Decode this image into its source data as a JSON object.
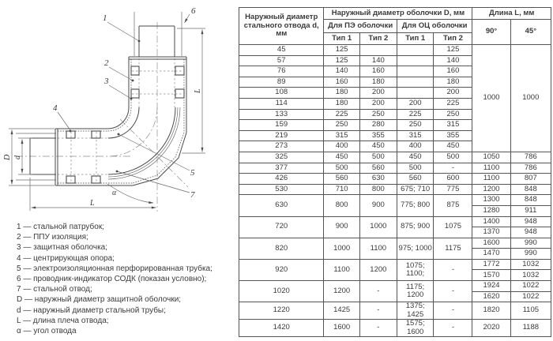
{
  "drawing": {
    "callouts": {
      "c1": "1",
      "c2": "2",
      "c3": "3",
      "c4": "4",
      "c5": "5",
      "c6": "6",
      "c7": "7"
    },
    "dims": {
      "shell_diameter": "D",
      "pipe_diameter": "d",
      "arm_length_bottom": "L",
      "arm_length_right": "L",
      "angle": "α"
    }
  },
  "legend": {
    "items": [
      "1 — стальной патрубок;",
      "2 — ППУ изоляция;",
      "3 — защитная оболочка;",
      "4 — центрирующая опора;",
      "5 — электроизоляционная перфорированная трубка;",
      "6 — проводник-индикатор СОДК (показан условно);",
      "7 — стальной отвод;",
      "D — наружный диаметр защитной оболочки;",
      "d — наружный диаметр стальной трубы;",
      "L — длина плеча отвода;",
      "α — угол отвода"
    ]
  },
  "table": {
    "header": {
      "col_d": "Наружный диаметр стального отвода d, мм",
      "col_shell": "Наружный диаметр оболочки D, мм",
      "pe": "Для ПЭ оболочки",
      "oc": "Для ОЦ оболочки",
      "pe_type1": "Тип 1",
      "pe_type2": "Тип 2",
      "oc_type1": "Тип 1",
      "oc_type2": "Тип 2",
      "len": "Длина L, мм",
      "deg90": "90°",
      "deg45": "45°"
    },
    "merged_length": {
      "rows": 10,
      "l90": "1000",
      "l45": "1000"
    },
    "rows": [
      {
        "d": "45",
        "pe1": "125",
        "pe2": "",
        "oc1": "",
        "oc2": "125"
      },
      {
        "d": "57",
        "pe1": "125",
        "pe2": "140",
        "oc1": "",
        "oc2": "140"
      },
      {
        "d": "76",
        "pe1": "140",
        "pe2": "160",
        "oc1": "",
        "oc2": "160"
      },
      {
        "d": "89",
        "pe1": "160",
        "pe2": "180",
        "oc1": "",
        "oc2": "180"
      },
      {
        "d": "108",
        "pe1": "180",
        "pe2": "200",
        "oc1": "",
        "oc2": "200"
      },
      {
        "d": "114",
        "pe1": "180",
        "pe2": "200",
        "oc1": "200",
        "oc2": "225"
      },
      {
        "d": "133",
        "pe1": "225",
        "pe2": "250",
        "oc1": "225",
        "oc2": "250"
      },
      {
        "d": "159",
        "pe1": "250",
        "pe2": "280",
        "oc1": "250",
        "oc2": "315"
      },
      {
        "d": "219",
        "pe1": "315",
        "pe2": "355",
        "oc1": "315",
        "oc2": "355"
      },
      {
        "d": "273",
        "pe1": "400",
        "pe2": "450",
        "oc1": "400",
        "oc2": "450"
      },
      {
        "d": "325",
        "pe1": "450",
        "pe2": "500",
        "oc1": "450",
        "oc2": "500",
        "l": [
          [
            "1050",
            "786"
          ]
        ]
      },
      {
        "d": "377",
        "pe1": "500",
        "pe2": "560",
        "oc1": "500",
        "oc2": "-",
        "l": [
          [
            "1100",
            "786"
          ]
        ]
      },
      {
        "d": "426",
        "pe1": "560",
        "pe2": "630",
        "oc1": "560",
        "oc2": "600",
        "l": [
          [
            "1100",
            "807"
          ]
        ]
      },
      {
        "d": "530",
        "pe1": "710",
        "pe2": "800",
        "oc1": "675; 710",
        "oc2": "775",
        "l": [
          [
            "1200",
            "848"
          ]
        ]
      },
      {
        "d": "630",
        "pe1": "800",
        "pe2": "900",
        "oc1": "775; 800",
        "oc2": "875",
        "l": [
          [
            "1300",
            "848"
          ],
          [
            "1280",
            "911"
          ]
        ]
      },
      {
        "d": "720",
        "pe1": "900",
        "pe2": "1000",
        "oc1": "875; 900",
        "oc2": "1075",
        "l": [
          [
            "1400",
            "948"
          ],
          [
            "1370",
            "948"
          ]
        ]
      },
      {
        "d": "820",
        "pe1": "1000",
        "pe2": "1100",
        "oc1": "975; 1000",
        "oc2": "1175",
        "l": [
          [
            "1600",
            "990"
          ],
          [
            "1470",
            "990"
          ]
        ]
      },
      {
        "d": "920",
        "pe1": "1100",
        "pe2": "1200",
        "oc1": "1075; 1100;",
        "oc2": "-",
        "l": [
          [
            "1772",
            "1032"
          ],
          [
            "1570",
            "1032"
          ]
        ]
      },
      {
        "d": "1020",
        "pe1": "1200",
        "pe2": "-",
        "oc1": "1175; 1200",
        "oc2": "-",
        "l": [
          [
            "1924",
            "1022"
          ],
          [
            "1620",
            "1022"
          ]
        ]
      },
      {
        "d": "1220",
        "pe1": "1425",
        "pe2": "-",
        "oc1": "1375; 1425",
        "oc2": "-",
        "l": [
          [
            "1820",
            "1105"
          ]
        ]
      },
      {
        "d": "1420",
        "pe1": "1600",
        "pe2": "-",
        "oc1": "1575; 1600",
        "oc2": "-",
        "l": [
          [
            "2020",
            "1188"
          ]
        ]
      }
    ]
  }
}
